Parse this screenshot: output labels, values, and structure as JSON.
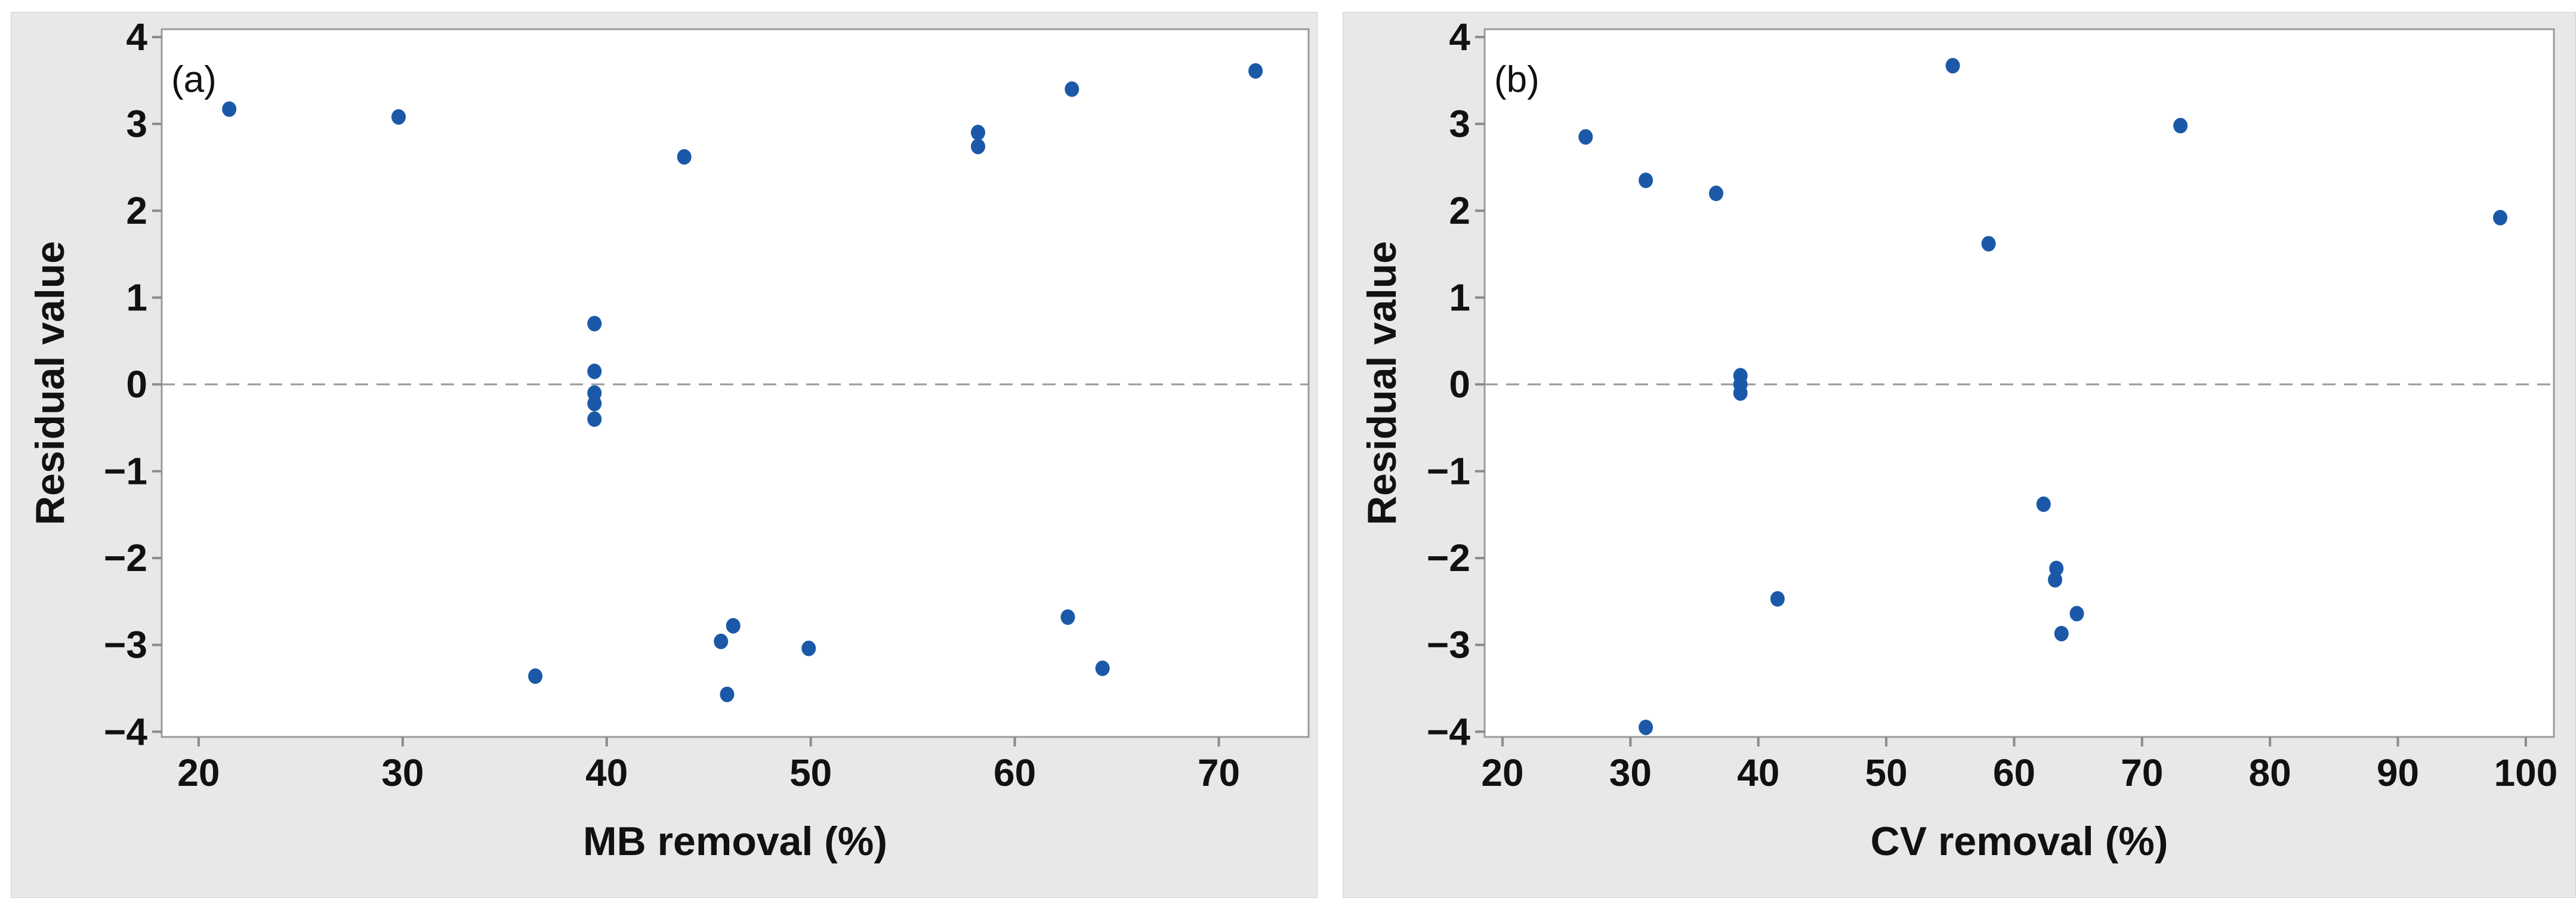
{
  "figure": {
    "description": "Residual value versus removal percentage scatter plots",
    "panel_count": 2
  },
  "style": {
    "panel_background": "#e8e8e8",
    "plot_background": "#ffffff",
    "frame_color": "#9b9b9b",
    "tick_mark_color": "#8a8a8a",
    "zero_line_color": "#999999",
    "text_color": "#111111",
    "marker_color": "#1b59a8"
  },
  "chart_data": [
    {
      "type": "scatter",
      "panel_label": "(a)",
      "xlabel": "MB removal (%)",
      "ylabel": "Residual value",
      "xticks": [
        20,
        30,
        40,
        50,
        60,
        70
      ],
      "yticks": [
        4,
        3,
        2,
        1,
        0,
        -1,
        -2,
        -3,
        -4
      ],
      "xlim": [
        18.19,
        74.4
      ],
      "ylim": [
        -4.06,
        4.09
      ],
      "grid": false,
      "legend": "none",
      "zero_reference_line": 0,
      "marker_color": "#1b59a8",
      "points": [
        [
          21.5,
          3.17
        ],
        [
          29.8,
          3.08
        ],
        [
          36.5,
          -3.36
        ],
        [
          39.4,
          0.7
        ],
        [
          39.4,
          0.15
        ],
        [
          39.4,
          -0.1
        ],
        [
          39.4,
          -0.22
        ],
        [
          39.4,
          -0.4
        ],
        [
          43.8,
          2.62
        ],
        [
          45.6,
          -2.96
        ],
        [
          46.2,
          -2.78
        ],
        [
          45.9,
          -3.57
        ],
        [
          49.9,
          -3.04
        ],
        [
          58.2,
          2.9
        ],
        [
          58.2,
          2.74
        ],
        [
          62.6,
          -2.68
        ],
        [
          62.8,
          3.4
        ],
        [
          64.3,
          -3.27
        ],
        [
          71.8,
          3.61
        ]
      ]
    },
    {
      "type": "scatter",
      "panel_label": "(b)",
      "xlabel": "CV removal (%)",
      "ylabel": "Residual value",
      "xticks": [
        20,
        30,
        40,
        50,
        60,
        70,
        80,
        90,
        100
      ],
      "yticks": [
        4,
        3,
        2,
        1,
        0,
        -1,
        -2,
        -3,
        -4
      ],
      "xlim": [
        18.6,
        102.2
      ],
      "ylim": [
        -4.06,
        4.09
      ],
      "grid": false,
      "legend": "none",
      "zero_reference_line": 0,
      "marker_color": "#1b59a8",
      "points": [
        [
          26.5,
          2.85
        ],
        [
          31.2,
          2.35
        ],
        [
          31.2,
          -3.95
        ],
        [
          36.7,
          2.2
        ],
        [
          38.6,
          0.1
        ],
        [
          38.6,
          0.0
        ],
        [
          38.6,
          -0.1
        ],
        [
          41.5,
          -2.47
        ],
        [
          55.2,
          3.67
        ],
        [
          58.0,
          1.62
        ],
        [
          62.3,
          -1.38
        ],
        [
          63.3,
          -2.12
        ],
        [
          63.2,
          -2.25
        ],
        [
          63.7,
          -2.87
        ],
        [
          64.9,
          -2.64
        ],
        [
          73.0,
          2.98
        ],
        [
          98.0,
          1.92
        ]
      ]
    }
  ]
}
